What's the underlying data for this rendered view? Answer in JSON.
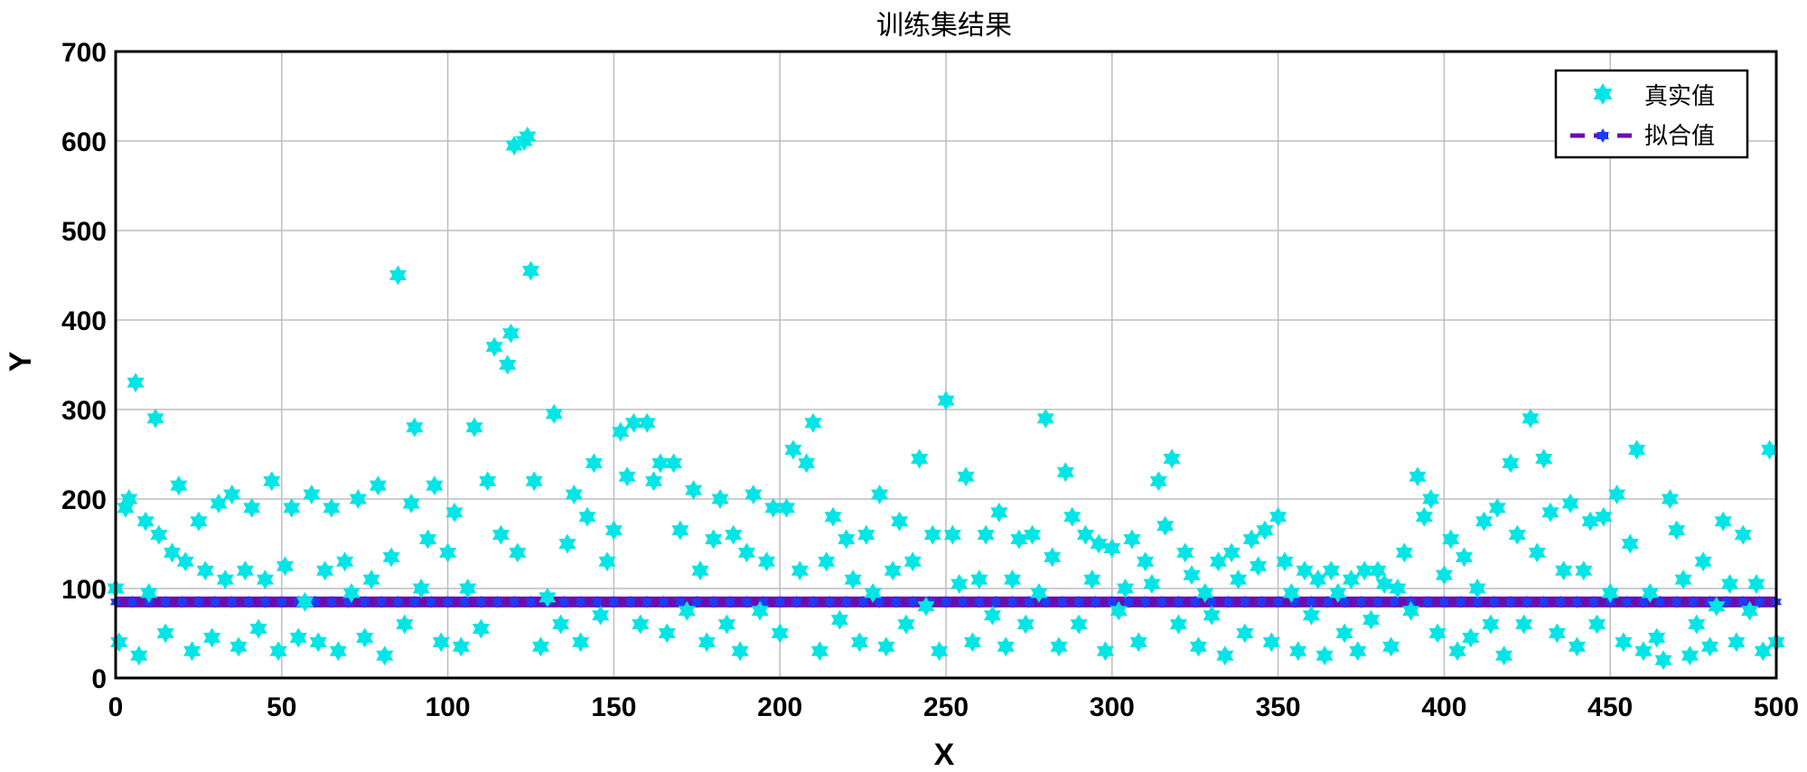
{
  "chart_data": {
    "type": "scatter",
    "title": "训练集结果",
    "xlabel": "X",
    "ylabel": "Y",
    "xlim": [
      0,
      500
    ],
    "ylim": [
      0,
      700
    ],
    "xticks": [
      0,
      50,
      100,
      150,
      200,
      250,
      300,
      350,
      400,
      450,
      500
    ],
    "yticks": [
      0,
      100,
      200,
      300,
      400,
      500,
      600,
      700
    ],
    "grid": true,
    "legend_position": "top-right",
    "series": [
      {
        "name": "真实值",
        "kind": "scatter",
        "marker": "hexagram",
        "color": "#00e5e5",
        "points": [
          [
            0,
            100
          ],
          [
            1,
            40
          ],
          [
            3,
            190
          ],
          [
            4,
            200
          ],
          [
            6,
            330
          ],
          [
            7,
            25
          ],
          [
            9,
            175
          ],
          [
            10,
            95
          ],
          [
            12,
            290
          ],
          [
            13,
            160
          ],
          [
            15,
            50
          ],
          [
            17,
            140
          ],
          [
            19,
            215
          ],
          [
            21,
            130
          ],
          [
            23,
            30
          ],
          [
            25,
            175
          ],
          [
            27,
            120
          ],
          [
            29,
            45
          ],
          [
            31,
            195
          ],
          [
            33,
            110
          ],
          [
            35,
            205
          ],
          [
            37,
            35
          ],
          [
            39,
            120
          ],
          [
            41,
            190
          ],
          [
            43,
            55
          ],
          [
            45,
            110
          ],
          [
            47,
            220
          ],
          [
            49,
            30
          ],
          [
            51,
            125
          ],
          [
            53,
            190
          ],
          [
            55,
            45
          ],
          [
            57,
            85
          ],
          [
            59,
            205
          ],
          [
            61,
            40
          ],
          [
            63,
            120
          ],
          [
            65,
            190
          ],
          [
            67,
            30
          ],
          [
            69,
            130
          ],
          [
            71,
            95
          ],
          [
            73,
            200
          ],
          [
            75,
            45
          ],
          [
            77,
            110
          ],
          [
            79,
            215
          ],
          [
            81,
            25
          ],
          [
            83,
            135
          ],
          [
            85,
            450
          ],
          [
            87,
            60
          ],
          [
            89,
            195
          ],
          [
            90,
            280
          ],
          [
            92,
            100
          ],
          [
            94,
            155
          ],
          [
            96,
            215
          ],
          [
            98,
            40
          ],
          [
            100,
            140
          ],
          [
            102,
            185
          ],
          [
            104,
            35
          ],
          [
            106,
            100
          ],
          [
            108,
            280
          ],
          [
            110,
            55
          ],
          [
            112,
            220
          ],
          [
            114,
            370
          ],
          [
            116,
            160
          ],
          [
            118,
            350
          ],
          [
            119,
            385
          ],
          [
            120,
            595
          ],
          [
            121,
            140
          ],
          [
            123,
            600
          ],
          [
            124,
            605
          ],
          [
            125,
            455
          ],
          [
            126,
            220
          ],
          [
            128,
            35
          ],
          [
            130,
            90
          ],
          [
            132,
            295
          ],
          [
            134,
            60
          ],
          [
            136,
            150
          ],
          [
            138,
            205
          ],
          [
            140,
            40
          ],
          [
            142,
            180
          ],
          [
            144,
            240
          ],
          [
            146,
            70
          ],
          [
            148,
            130
          ],
          [
            150,
            165
          ],
          [
            152,
            275
          ],
          [
            154,
            225
          ],
          [
            156,
            285
          ],
          [
            158,
            60
          ],
          [
            160,
            285
          ],
          [
            162,
            220
          ],
          [
            164,
            240
          ],
          [
            166,
            50
          ],
          [
            168,
            240
          ],
          [
            170,
            165
          ],
          [
            172,
            75
          ],
          [
            174,
            210
          ],
          [
            176,
            120
          ],
          [
            178,
            40
          ],
          [
            180,
            155
          ],
          [
            182,
            200
          ],
          [
            184,
            60
          ],
          [
            186,
            160
          ],
          [
            188,
            30
          ],
          [
            190,
            140
          ],
          [
            192,
            205
          ],
          [
            194,
            75
          ],
          [
            196,
            130
          ],
          [
            198,
            190
          ],
          [
            200,
            50
          ],
          [
            202,
            190
          ],
          [
            204,
            255
          ],
          [
            206,
            120
          ],
          [
            208,
            240
          ],
          [
            210,
            285
          ],
          [
            212,
            30
          ],
          [
            214,
            130
          ],
          [
            216,
            180
          ],
          [
            218,
            65
          ],
          [
            220,
            155
          ],
          [
            222,
            110
          ],
          [
            224,
            40
          ],
          [
            226,
            160
          ],
          [
            228,
            95
          ],
          [
            230,
            205
          ],
          [
            232,
            35
          ],
          [
            234,
            120
          ],
          [
            236,
            175
          ],
          [
            238,
            60
          ],
          [
            240,
            130
          ],
          [
            242,
            245
          ],
          [
            244,
            80
          ],
          [
            246,
            160
          ],
          [
            248,
            30
          ],
          [
            250,
            310
          ],
          [
            252,
            160
          ],
          [
            254,
            105
          ],
          [
            256,
            225
          ],
          [
            258,
            40
          ],
          [
            260,
            110
          ],
          [
            262,
            160
          ],
          [
            264,
            70
          ],
          [
            266,
            185
          ],
          [
            268,
            35
          ],
          [
            270,
            110
          ],
          [
            272,
            155
          ],
          [
            274,
            60
          ],
          [
            276,
            160
          ],
          [
            278,
            95
          ],
          [
            280,
            290
          ],
          [
            282,
            135
          ],
          [
            284,
            35
          ],
          [
            286,
            230
          ],
          [
            288,
            180
          ],
          [
            290,
            60
          ],
          [
            292,
            160
          ],
          [
            294,
            110
          ],
          [
            296,
            150
          ],
          [
            298,
            30
          ],
          [
            300,
            145
          ],
          [
            302,
            75
          ],
          [
            304,
            100
          ],
          [
            306,
            155
          ],
          [
            308,
            40
          ],
          [
            310,
            130
          ],
          [
            312,
            105
          ],
          [
            314,
            220
          ],
          [
            316,
            170
          ],
          [
            318,
            245
          ],
          [
            320,
            60
          ],
          [
            322,
            140
          ],
          [
            324,
            115
          ],
          [
            326,
            35
          ],
          [
            328,
            95
          ],
          [
            330,
            70
          ],
          [
            332,
            130
          ],
          [
            334,
            25
          ],
          [
            336,
            140
          ],
          [
            338,
            110
          ],
          [
            340,
            50
          ],
          [
            342,
            155
          ],
          [
            344,
            125
          ],
          [
            346,
            165
          ],
          [
            348,
            40
          ],
          [
            350,
            180
          ],
          [
            352,
            130
          ],
          [
            354,
            95
          ],
          [
            356,
            30
          ],
          [
            358,
            120
          ],
          [
            360,
            70
          ],
          [
            362,
            110
          ],
          [
            364,
            25
          ],
          [
            366,
            120
          ],
          [
            368,
            95
          ],
          [
            370,
            50
          ],
          [
            372,
            110
          ],
          [
            374,
            30
          ],
          [
            376,
            120
          ],
          [
            378,
            65
          ],
          [
            380,
            120
          ],
          [
            382,
            105
          ],
          [
            384,
            35
          ],
          [
            386,
            100
          ],
          [
            388,
            140
          ],
          [
            390,
            75
          ],
          [
            392,
            225
          ],
          [
            394,
            180
          ],
          [
            396,
            200
          ],
          [
            398,
            50
          ],
          [
            400,
            115
          ],
          [
            402,
            155
          ],
          [
            404,
            30
          ],
          [
            406,
            135
          ],
          [
            408,
            45
          ],
          [
            410,
            100
          ],
          [
            412,
            175
          ],
          [
            414,
            60
          ],
          [
            416,
            190
          ],
          [
            418,
            25
          ],
          [
            420,
            240
          ],
          [
            422,
            160
          ],
          [
            424,
            60
          ],
          [
            426,
            290
          ],
          [
            428,
            140
          ],
          [
            430,
            245
          ],
          [
            432,
            185
          ],
          [
            434,
            50
          ],
          [
            436,
            120
          ],
          [
            438,
            195
          ],
          [
            440,
            35
          ],
          [
            442,
            120
          ],
          [
            444,
            175
          ],
          [
            446,
            60
          ],
          [
            448,
            180
          ],
          [
            450,
            95
          ],
          [
            452,
            205
          ],
          [
            454,
            40
          ],
          [
            456,
            150
          ],
          [
            458,
            255
          ],
          [
            460,
            30
          ],
          [
            462,
            95
          ],
          [
            464,
            45
          ],
          [
            466,
            20
          ],
          [
            468,
            200
          ],
          [
            470,
            165
          ],
          [
            472,
            110
          ],
          [
            474,
            25
          ],
          [
            476,
            60
          ],
          [
            478,
            130
          ],
          [
            480,
            35
          ],
          [
            482,
            80
          ],
          [
            484,
            175
          ],
          [
            486,
            105
          ],
          [
            488,
            40
          ],
          [
            490,
            160
          ],
          [
            492,
            75
          ],
          [
            494,
            105
          ],
          [
            496,
            30
          ],
          [
            498,
            255
          ],
          [
            500,
            40
          ]
        ]
      },
      {
        "name": "拟合值",
        "kind": "line",
        "color": "#6a0dad",
        "marker_color": "#1a3cff",
        "y_constant": 85,
        "x_range": [
          0,
          500
        ]
      }
    ]
  }
}
